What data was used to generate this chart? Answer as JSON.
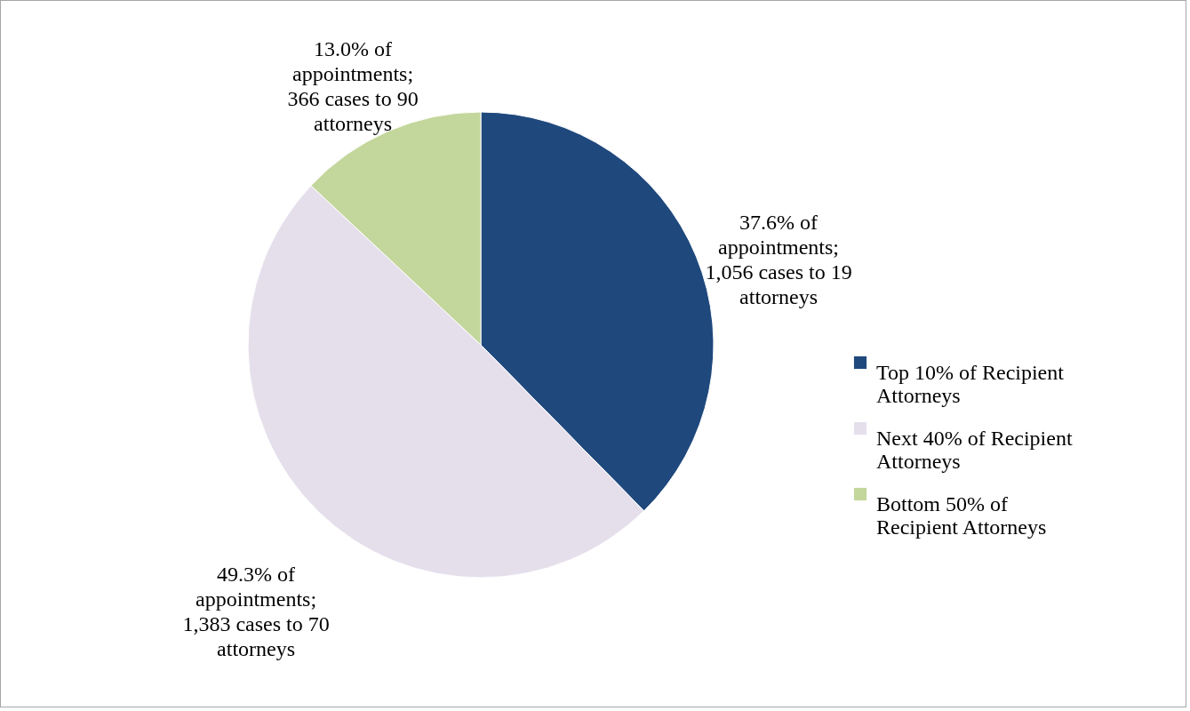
{
  "chart_data": {
    "type": "pie",
    "categories": [
      "Top 10% of Recipient Attorneys",
      "Next 40% of Recipient Attorneys",
      "Bottom 50% of Recipient Attorneys"
    ],
    "values": [
      37.6,
      49.3,
      13.0
    ],
    "colors": [
      "#1f497d",
      "#e5dfec",
      "#c3d69b"
    ],
    "value_labels": [
      "37.6% of appointments; 1,056 cases to 19 attorneys",
      "49.3% of appointments; 1,383 cases to 70 attorneys",
      "13.0% of appointments; 366 cases to 90 attorneys"
    ],
    "legend": "right"
  }
}
